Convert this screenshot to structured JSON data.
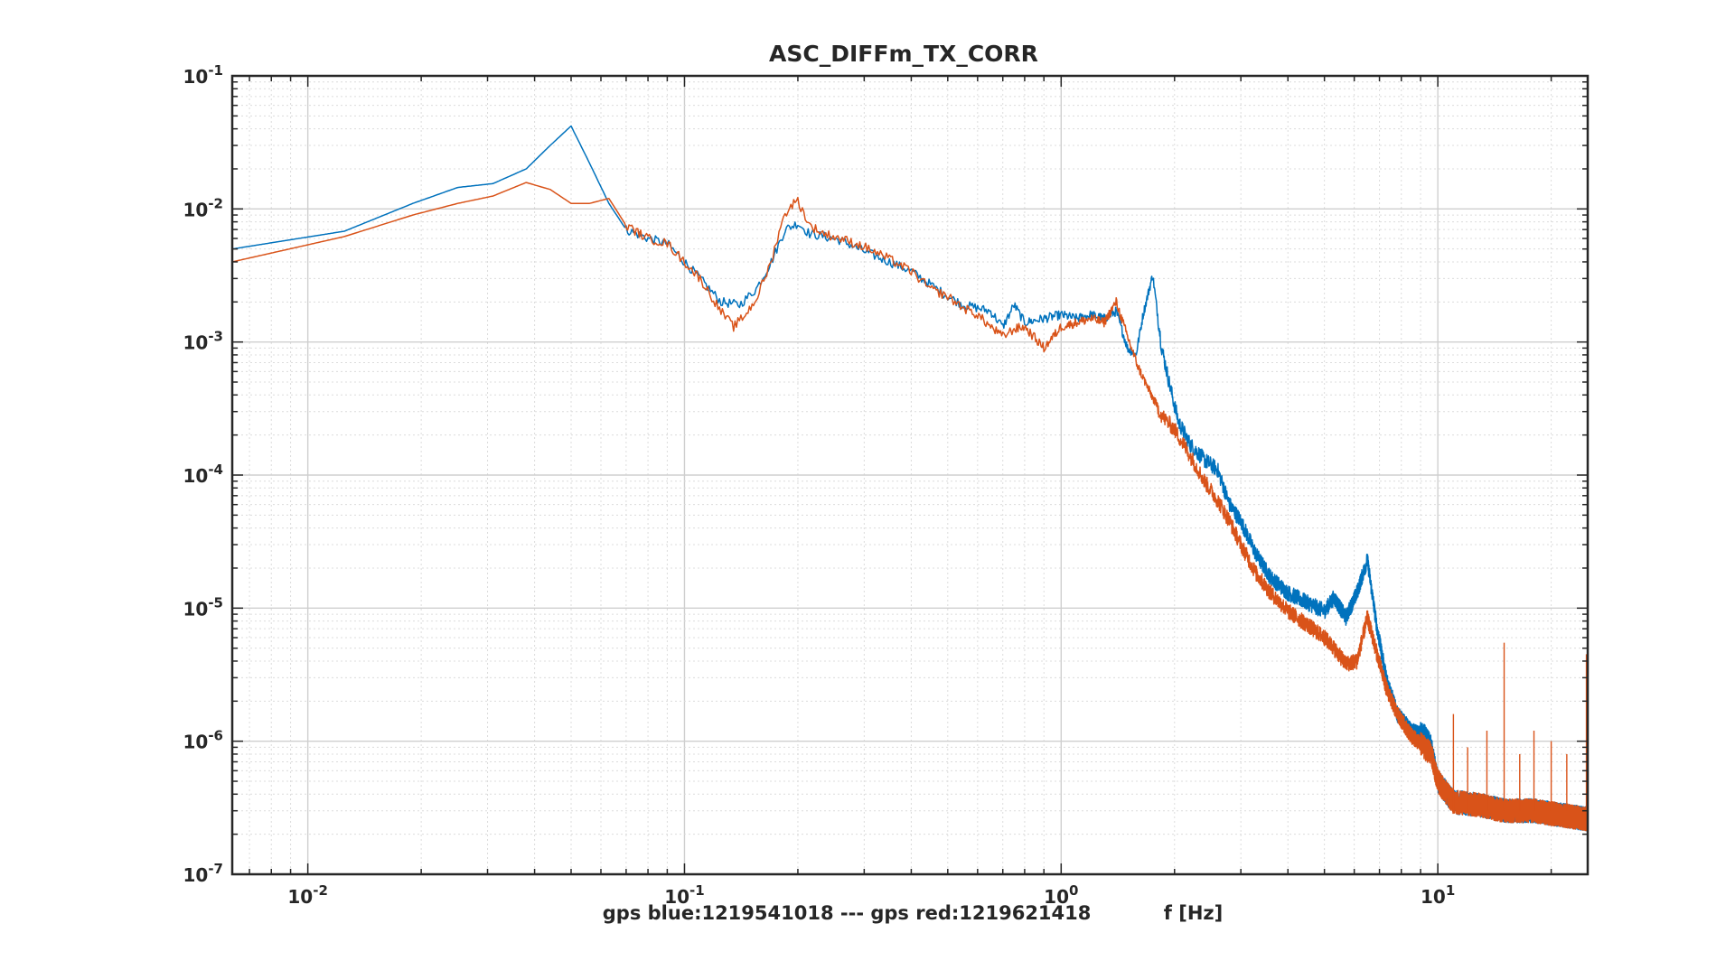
{
  "chart_data": {
    "type": "line",
    "title": "ASC_DIFFm_TX_CORR",
    "xlabel": "gps blue:1219541018 --- gps red:1219621418           f [Hz]",
    "ylabel": "",
    "xscale": "log",
    "yscale": "log",
    "xlim": [
      0.0063,
      25
    ],
    "ylim": [
      1e-07,
      0.1
    ],
    "grid": true,
    "minor_grid": true,
    "legend": "none",
    "x_ticks": [
      {
        "value": 0.01,
        "base": "10",
        "exp": "-2"
      },
      {
        "value": 0.1,
        "base": "10",
        "exp": "-1"
      },
      {
        "value": 1,
        "base": "10",
        "exp": "0"
      },
      {
        "value": 10,
        "base": "10",
        "exp": "1"
      }
    ],
    "y_ticks": [
      {
        "value": 0.1,
        "base": "10",
        "exp": "-1"
      },
      {
        "value": 0.01,
        "base": "10",
        "exp": "-2"
      },
      {
        "value": 0.001,
        "base": "10",
        "exp": "-3"
      },
      {
        "value": 0.0001,
        "base": "10",
        "exp": "-4"
      },
      {
        "value": 1e-05,
        "base": "10",
        "exp": "-5"
      },
      {
        "value": 1e-06,
        "base": "10",
        "exp": "-6"
      },
      {
        "value": 1e-07,
        "base": "10",
        "exp": "-7"
      }
    ],
    "series": [
      {
        "color": "#0072bd",
        "x": [
          0.0063,
          0.0125,
          0.019,
          0.025,
          0.031,
          0.038,
          0.044,
          0.05,
          0.056,
          0.063,
          0.07,
          0.08,
          0.09,
          0.1,
          0.11,
          0.125,
          0.14,
          0.155,
          0.17,
          0.185,
          0.2,
          0.215,
          0.235,
          0.26,
          0.3,
          0.35,
          0.4,
          0.45,
          0.5,
          0.55,
          0.6,
          0.65,
          0.7,
          0.75,
          0.8,
          0.9,
          1.0,
          1.1,
          1.2,
          1.3,
          1.4,
          1.5,
          1.58,
          1.65,
          1.75,
          1.85,
          1.95,
          2.05,
          2.2,
          2.4,
          2.6,
          2.8,
          3.0,
          3.3,
          3.6,
          4.0,
          4.5,
          5.0,
          5.3,
          5.7,
          6.1,
          6.5,
          6.9,
          7.3,
          7.8,
          8.5,
          9.2,
          9.6,
          10,
          11,
          13,
          15,
          18,
          21,
          25
        ],
        "y": [
          0.005,
          0.0068,
          0.011,
          0.0145,
          0.0155,
          0.02,
          0.03,
          0.042,
          0.022,
          0.011,
          0.007,
          0.006,
          0.0055,
          0.004,
          0.003,
          0.002,
          0.0019,
          0.0025,
          0.004,
          0.007,
          0.0078,
          0.0065,
          0.0062,
          0.0058,
          0.0048,
          0.004,
          0.0034,
          0.0027,
          0.0022,
          0.0019,
          0.0018,
          0.0017,
          0.0013,
          0.0019,
          0.0014,
          0.0015,
          0.0016,
          0.0015,
          0.0016,
          0.0015,
          0.0017,
          0.0009,
          0.0008,
          0.0016,
          0.0032,
          0.0009,
          0.00045,
          0.00025,
          0.00017,
          0.00013,
          0.00011,
          6e-05,
          4.5e-05,
          2.5e-05,
          1.7e-05,
          1.3e-05,
          1.1e-05,
          9.5e-06,
          1.2e-05,
          8.5e-06,
          1.3e-05,
          2.3e-05,
          7e-06,
          3e-06,
          1.6e-06,
          1.2e-06,
          1.1e-06,
          9e-07,
          5e-07,
          3.5e-07,
          3.3e-07,
          3e-07,
          3e-07,
          2.8e-07,
          2.6e-07
        ]
      },
      {
        "color": "#d95319",
        "x": [
          0.0063,
          0.0125,
          0.019,
          0.025,
          0.031,
          0.038,
          0.044,
          0.05,
          0.056,
          0.063,
          0.07,
          0.08,
          0.09,
          0.1,
          0.11,
          0.125,
          0.135,
          0.145,
          0.155,
          0.17,
          0.18,
          0.19,
          0.2,
          0.215,
          0.235,
          0.26,
          0.3,
          0.35,
          0.4,
          0.45,
          0.5,
          0.55,
          0.6,
          0.65,
          0.7,
          0.75,
          0.8,
          0.9,
          1.0,
          1.1,
          1.2,
          1.3,
          1.4,
          1.5,
          1.6,
          1.7,
          1.85,
          2.0,
          2.2,
          2.4,
          2.6,
          2.8,
          3.0,
          3.3,
          3.6,
          4.0,
          4.5,
          5.0,
          5.3,
          5.7,
          6.1,
          6.5,
          6.9,
          7.3,
          7.8,
          8.5,
          9.2,
          9.6,
          10,
          11,
          13,
          15,
          18,
          21,
          25
        ],
        "y": [
          0.004,
          0.0062,
          0.009,
          0.011,
          0.0125,
          0.0158,
          0.014,
          0.011,
          0.011,
          0.012,
          0.0075,
          0.006,
          0.0055,
          0.004,
          0.003,
          0.0017,
          0.0013,
          0.0016,
          0.0021,
          0.004,
          0.0075,
          0.0105,
          0.0115,
          0.0075,
          0.0065,
          0.006,
          0.0052,
          0.0042,
          0.0034,
          0.0025,
          0.0022,
          0.0018,
          0.0016,
          0.0013,
          0.0011,
          0.00125,
          0.0013,
          0.0009,
          0.0013,
          0.0014,
          0.0015,
          0.0014,
          0.002,
          0.0011,
          0.00065,
          0.00045,
          0.00028,
          0.00022,
          0.00014,
          9e-05,
          6.5e-05,
          4.5e-05,
          3e-05,
          1.8e-05,
          1.3e-05,
          9.5e-06,
          7.5e-06,
          6e-06,
          5e-06,
          3.8e-06,
          4e-06,
          8.5e-06,
          4.5e-06,
          2.5e-06,
          1.6e-06,
          1.1e-06,
          9e-07,
          8e-07,
          5e-07,
          3.5e-07,
          3.3e-07,
          3e-07,
          3e-07,
          2.8e-07,
          2.6e-07
        ]
      }
    ],
    "spikes": {
      "color": "#d95319",
      "items": [
        {
          "x": 15.0,
          "base": 3e-07,
          "peak": 5.5e-06
        },
        {
          "x": 11.0,
          "base": 3e-07,
          "peak": 1.6e-06
        },
        {
          "x": 12.0,
          "base": 3e-07,
          "peak": 9e-07
        },
        {
          "x": 13.5,
          "base": 3e-07,
          "peak": 1.2e-06
        },
        {
          "x": 16.5,
          "base": 3e-07,
          "peak": 8e-07
        },
        {
          "x": 18.0,
          "base": 3e-07,
          "peak": 1.2e-06
        },
        {
          "x": 20.0,
          "base": 3e-07,
          "peak": 1e-06
        },
        {
          "x": 22.0,
          "base": 3e-07,
          "peak": 8e-07
        },
        {
          "x": 24.8,
          "base": 2.5e-07,
          "peak": 4.5e-06
        }
      ]
    }
  }
}
